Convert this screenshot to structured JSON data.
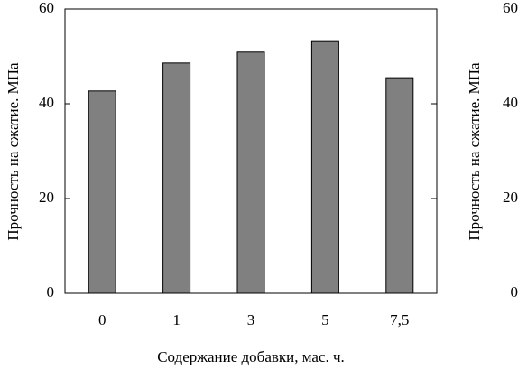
{
  "chart_data": {
    "type": "bar",
    "x_label": "Содержание добавки, мас. ч.",
    "y_label": "Прочность на сжатие. МПа",
    "y2_label": "Прочность на сжатие. МПа",
    "categories": [
      "0",
      "1",
      "3",
      "5",
      "7,5"
    ],
    "values": [
      42.7,
      48.6,
      50.9,
      53.3,
      45.5
    ],
    "color": "#808080",
    "ylim": [
      0,
      60
    ],
    "yticks": [
      0,
      20,
      40,
      60
    ],
    "y2lim": [
      0,
      60
    ],
    "y2ticks": [
      0,
      20,
      40,
      60
    ],
    "grid": false
  }
}
